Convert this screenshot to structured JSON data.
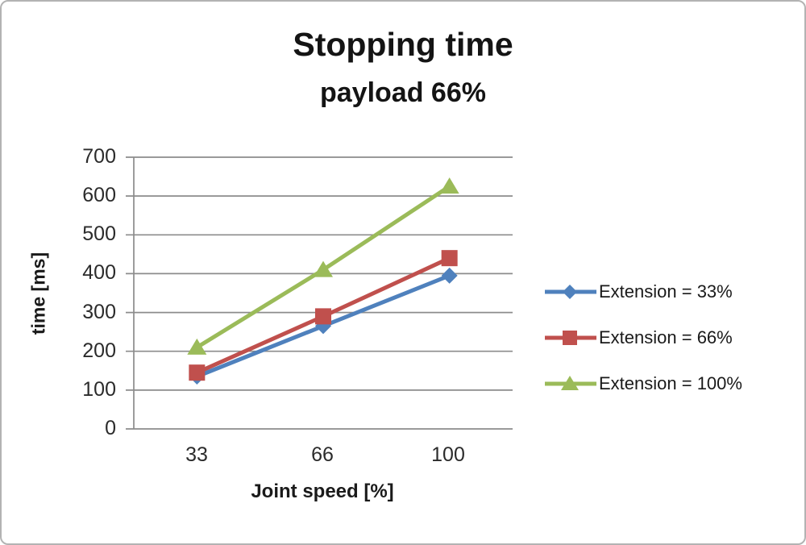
{
  "chart_data": {
    "type": "line",
    "title": "Stopping time",
    "subtitle": "payload 66%",
    "xlabel": "Joint speed [%]",
    "ylabel": "time [ms]",
    "categories": [
      33,
      66,
      100
    ],
    "ylim": [
      0,
      700
    ],
    "yticks": [
      700,
      600,
      500,
      400,
      300,
      200,
      100,
      0
    ],
    "grid": true,
    "legend_position": "right",
    "series": [
      {
        "name": "Extension = 33%",
        "marker": "diamond",
        "color": "#4F81BD",
        "values": [
          135,
          265,
          395
        ]
      },
      {
        "name": "Extension = 66%",
        "marker": "square",
        "color": "#C0504D",
        "values": [
          145,
          290,
          440
        ]
      },
      {
        "name": "Extension = 100%",
        "marker": "triangle",
        "color": "#9BBB59",
        "values": [
          210,
          410,
          625
        ]
      }
    ],
    "colors": {
      "gridline": "#8C8C8C",
      "axis_line": "#8C8C8C",
      "text": "#222222",
      "background": "#FFFFFF",
      "border": "#B3B3B3"
    }
  }
}
